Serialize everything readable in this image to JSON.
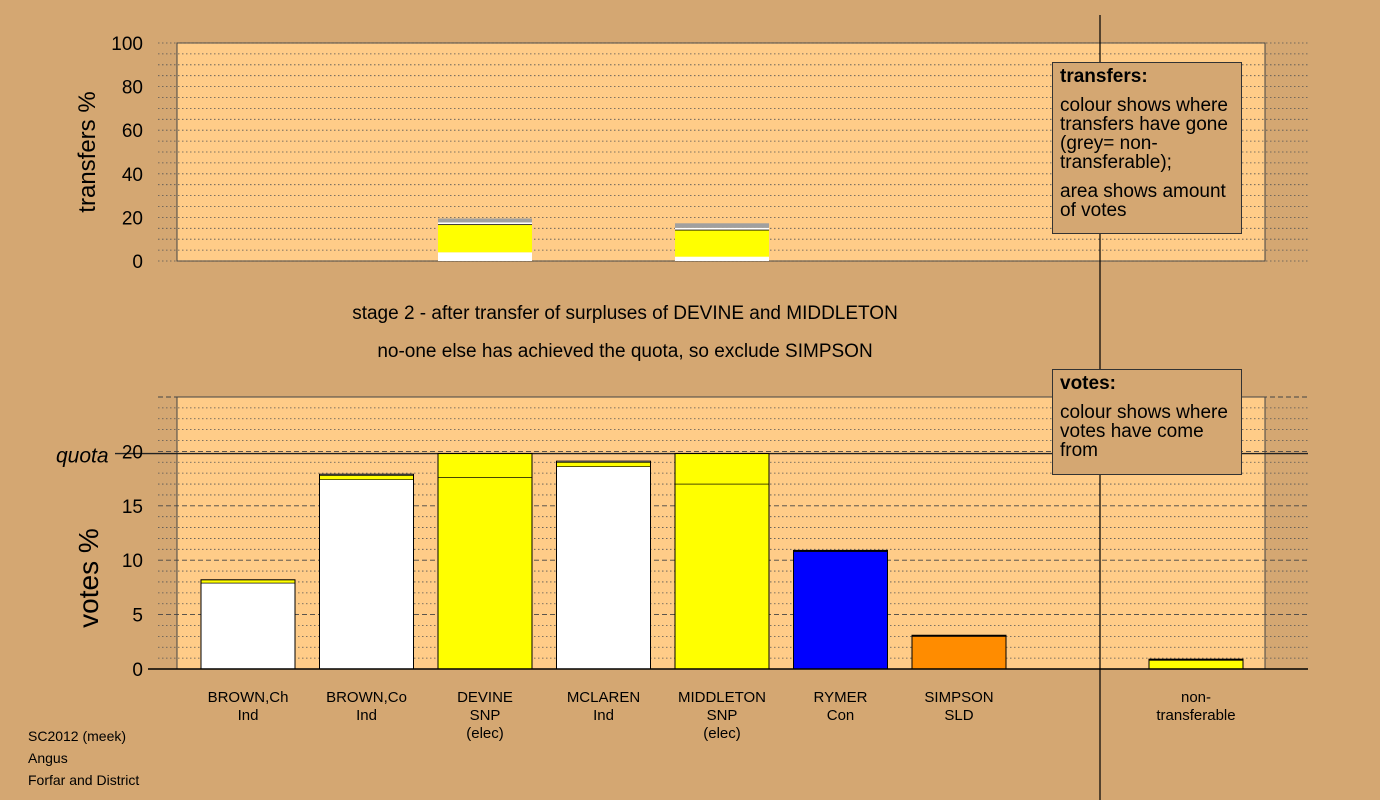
{
  "stage": {
    "line1": "stage 2 - after transfer of surpluses of DEVINE and MIDDLETON",
    "line2": "no-one else has achieved the quota, so exclude SIMPSON"
  },
  "transfers_legend": {
    "title": "transfers:",
    "text1": "colour shows where transfers have gone (grey= non-transferable);",
    "text2": "area shows amount of votes"
  },
  "votes_legend": {
    "title": "votes:",
    "text1": "colour shows where votes have come from"
  },
  "footer": {
    "line1": "SC2012 (meek)",
    "line2": "Angus",
    "line3": "Forfar and District"
  },
  "colors": {
    "background": "#d4a772",
    "plot_background": "#ffcc88",
    "Ind": "#ffffff",
    "SNP": "#ffff00",
    "Con": "#0000ff",
    "SLD": "#ff8c00",
    "nontransferable": "#a0a0a0"
  },
  "chart_data": [
    {
      "type": "bar",
      "stacked": true,
      "ylabel": "transfers %",
      "ylim": [
        0,
        100
      ],
      "yticks": [
        0,
        20,
        40,
        60,
        80,
        100
      ],
      "categories": [
        "DEVINE",
        "MIDDLETON"
      ],
      "stacks": [
        {
          "candidate": "DEVINE",
          "segments": [
            {
              "color": "#ffffff",
              "value": 4
            },
            {
              "color": "#ffff00",
              "value": 12.5
            },
            {
              "color": "#000000",
              "value": 0.4
            },
            {
              "color": "#ffffff",
              "value": 0.8
            },
            {
              "color": "#a0a0a0",
              "value": 1.8
            }
          ]
        },
        {
          "candidate": "MIDDLETON",
          "segments": [
            {
              "color": "#ffffff",
              "value": 2
            },
            {
              "color": "#ffff00",
              "value": 12
            },
            {
              "color": "#000000",
              "value": 0.4
            },
            {
              "color": "#ffffff",
              "value": 0.8
            },
            {
              "color": "#a0a0a0",
              "value": 2.1
            }
          ]
        }
      ]
    },
    {
      "type": "bar",
      "stacked": true,
      "ylabel": "votes %",
      "ylim": [
        0,
        25
      ],
      "yticks": [
        0,
        5,
        10,
        15,
        20
      ],
      "quota": 19.8,
      "quota_label": "quota",
      "categories": [
        "BROWN,Ch",
        "BROWN,Co",
        "DEVINE",
        "MCLAREN",
        "MIDDLETON",
        "RYMER",
        "SIMPSON",
        "",
        "non-transferable"
      ],
      "parties": [
        "Ind",
        "Ind",
        "SNP",
        "Ind",
        "SNP",
        "Con",
        "SLD",
        "",
        "transferable"
      ],
      "notes": [
        "",
        "",
        "(elec)",
        "",
        "(elec)",
        "",
        "",
        "",
        ""
      ],
      "stacks": [
        {
          "candidate": "BROWN,Ch",
          "segments": [
            {
              "color": "#ffffff",
              "value": 7.9
            },
            {
              "color": "#ffff00",
              "value": 0.3
            }
          ]
        },
        {
          "candidate": "BROWN,Co",
          "segments": [
            {
              "color": "#ffffff",
              "value": 17.4
            },
            {
              "color": "#ffff00",
              "value": 0.4
            },
            {
              "color": "#ffffff",
              "value": 0.1
            }
          ]
        },
        {
          "candidate": "DEVINE",
          "segments": [
            {
              "color": "#ffff00",
              "value": 17.6
            },
            {
              "color": "#ffff00",
              "value": 2.2
            }
          ]
        },
        {
          "candidate": "MCLAREN",
          "segments": [
            {
              "color": "#ffffff",
              "value": 18.6
            },
            {
              "color": "#ffff00",
              "value": 0.4
            },
            {
              "color": "#ffffff",
              "value": 0.1
            }
          ]
        },
        {
          "candidate": "MIDDLETON",
          "segments": [
            {
              "color": "#ffff00",
              "value": 17.0
            },
            {
              "color": "#ffff00",
              "value": 2.8
            }
          ]
        },
        {
          "candidate": "RYMER",
          "segments": [
            {
              "color": "#0000ff",
              "value": 10.8
            },
            {
              "color": "#000000",
              "value": 0.1
            }
          ]
        },
        {
          "candidate": "SIMPSON",
          "segments": [
            {
              "color": "#ff8c00",
              "value": 3.0
            },
            {
              "color": "#000000",
              "value": 0.1
            }
          ]
        },
        {
          "candidate": "",
          "segments": []
        },
        {
          "candidate": "non-transferable",
          "segments": [
            {
              "color": "#ffff00",
              "value": 0.8
            },
            {
              "color": "#000000",
              "value": 0.1
            }
          ]
        }
      ]
    }
  ]
}
